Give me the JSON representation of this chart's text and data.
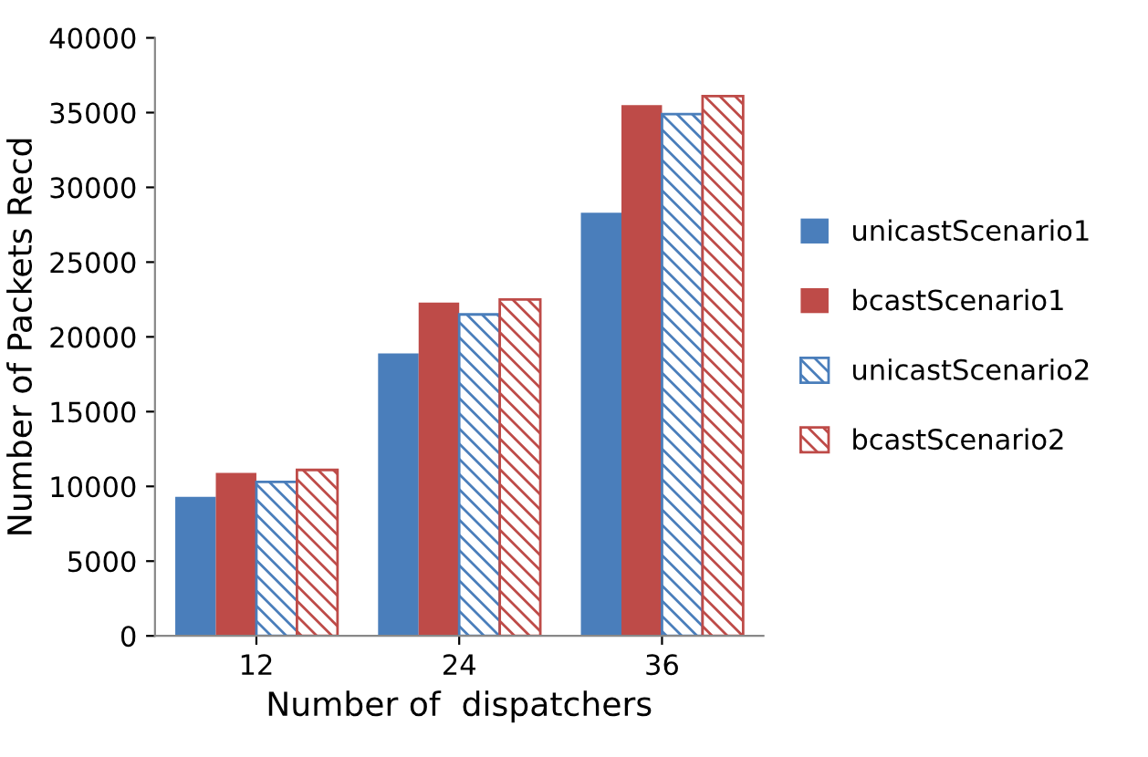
{
  "chart_data": {
    "type": "bar",
    "xlabel": "Number of  dispatchers",
    "ylabel": "Number of Packets Recd",
    "categories": [
      "12",
      "24",
      "36"
    ],
    "series": [
      {
        "name": "unicastScenario1",
        "color": "#4a7ebb",
        "values": [
          9300,
          18900,
          28300
        ]
      },
      {
        "name": "bcastScenario1",
        "color": "#be4b48",
        "values": [
          10900,
          22300,
          35500
        ]
      },
      {
        "name": "unicastScenario2",
        "color": "#4a7ebb",
        "values": [
          10300,
          21500,
          34900
        ]
      },
      {
        "name": "bcastScenario2",
        "color": "#be4b48",
        "values": [
          11100,
          22500,
          36100
        ]
      }
    ],
    "ylim": [
      0,
      40000
    ],
    "yticks": [
      0,
      5000,
      10000,
      15000,
      20000,
      25000,
      30000,
      35000,
      40000
    ],
    "grid": false,
    "legend": "right"
  }
}
